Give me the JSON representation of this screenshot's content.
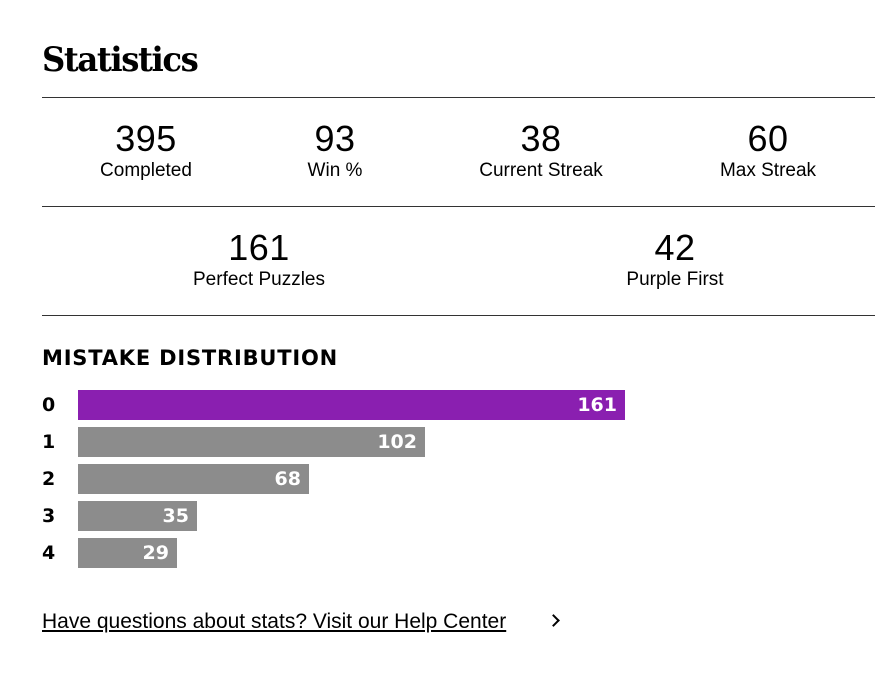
{
  "title": "Statistics",
  "stats": {
    "completed": {
      "value": "395",
      "label": "Completed"
    },
    "win_pct": {
      "value": "93",
      "label": "Win %"
    },
    "current_streak": {
      "value": "38",
      "label": "Current Streak"
    },
    "max_streak": {
      "value": "60",
      "label": "Max Streak"
    },
    "perfect_puzzles": {
      "value": "161",
      "label": "Perfect Puzzles"
    },
    "purple_first": {
      "value": "42",
      "label": "Purple First"
    }
  },
  "mistake_distribution": {
    "heading": "MISTAKE DISTRIBUTION",
    "max_bar_value": 161,
    "highlight_color": "#8a1fb0",
    "bar_color": "#8c8c8c",
    "rows": [
      {
        "mistakes": "0",
        "count": 161
      },
      {
        "mistakes": "1",
        "count": 102
      },
      {
        "mistakes": "2",
        "count": 68
      },
      {
        "mistakes": "3",
        "count": 35
      },
      {
        "mistakes": "4",
        "count": 29
      }
    ]
  },
  "help_link": "Have questions about stats? Visit our Help Center"
}
